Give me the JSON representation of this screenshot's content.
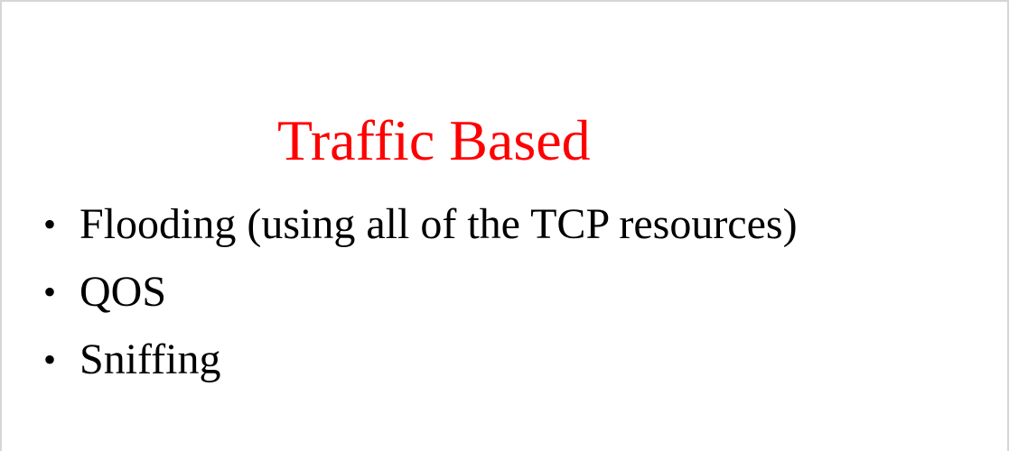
{
  "slide": {
    "title": "Traffic Based",
    "bullet_glyph": "•",
    "bullets": [
      "Flooding (using all of the TCP resources)",
      "QOS",
      "Sniffing"
    ]
  },
  "colors": {
    "title": "#ff0000",
    "text": "#000000",
    "background": "#ffffff"
  }
}
